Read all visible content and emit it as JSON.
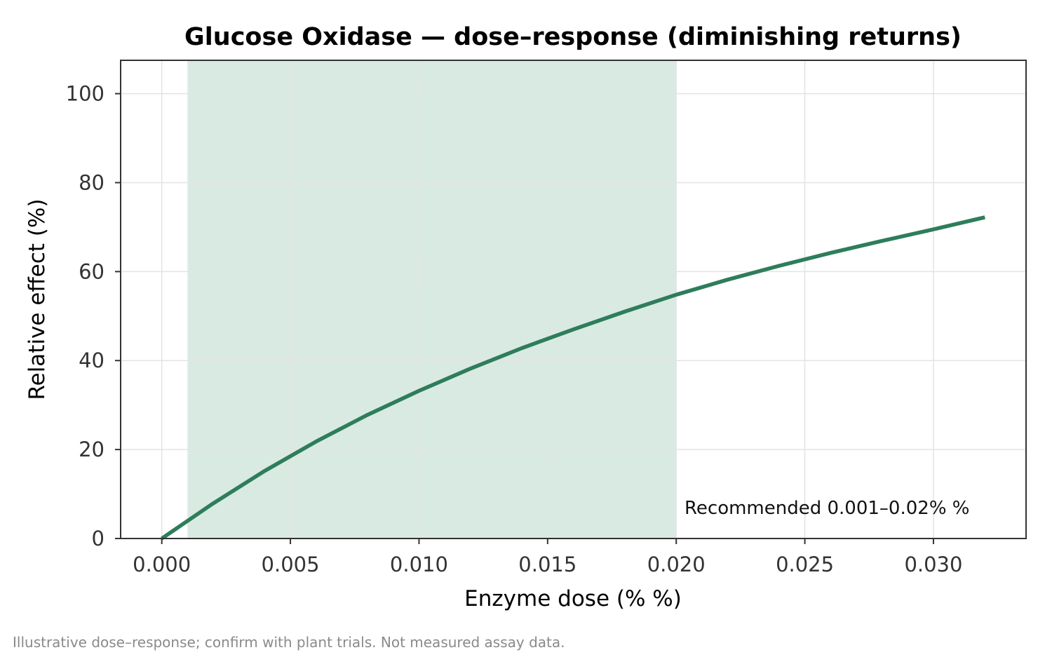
{
  "chart_data": {
    "type": "line",
    "title": "Glucose Oxidase — dose–response (diminishing returns)",
    "xlabel": "Enzyme dose (% %)",
    "ylabel": "Relative effect (%)",
    "xlim": [
      -0.0016,
      0.0336
    ],
    "ylim": [
      0,
      107.5
    ],
    "xticks": [
      0.0,
      0.005,
      0.01,
      0.015,
      0.02,
      0.025,
      0.03
    ],
    "xtick_labels": [
      "0.000",
      "0.005",
      "0.010",
      "0.015",
      "0.020",
      "0.025",
      "0.030"
    ],
    "yticks": [
      0,
      20,
      40,
      60,
      80,
      100
    ],
    "ytick_labels": [
      "0",
      "20",
      "40",
      "60",
      "80",
      "100"
    ],
    "grid": true,
    "recommended_band": {
      "x_start": 0.001,
      "x_end": 0.02,
      "color": "#d9eae2",
      "label": "Recommended 0.001–0.02% %"
    },
    "legend_position": "lower-right",
    "series": [
      {
        "color": "#2e7d5b",
        "x": [
          0.0,
          0.002,
          0.004,
          0.006,
          0.008,
          0.01,
          0.012,
          0.014,
          0.016,
          0.018,
          0.02,
          0.022,
          0.024,
          0.026,
          0.028,
          0.03,
          0.032
        ],
        "y": [
          0.0,
          7.9,
          15.2,
          21.8,
          27.8,
          33.2,
          38.2,
          42.8,
          47.0,
          51.0,
          54.8,
          58.2,
          61.3,
          64.2,
          66.9,
          69.5,
          72.2
        ]
      }
    ]
  },
  "footnote": "Illustrative dose–response; confirm with plant trials. Not measured assay data."
}
